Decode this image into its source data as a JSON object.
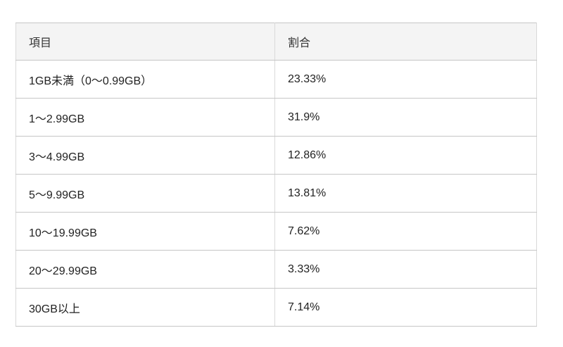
{
  "table": {
    "columns": [
      "項目",
      "割合"
    ],
    "rows": [
      {
        "item": "1GB未満（0〜0.99GB）",
        "ratio": "23.33%"
      },
      {
        "item": "1〜2.99GB",
        "ratio": "31.9%"
      },
      {
        "item": "3〜4.99GB",
        "ratio": "12.86%"
      },
      {
        "item": "5〜9.99GB",
        "ratio": "13.81%"
      },
      {
        "item": "10〜19.99GB",
        "ratio": "7.62%"
      },
      {
        "item": "20〜29.99GB",
        "ratio": "3.33%"
      },
      {
        "item": "30GB以上",
        "ratio": "7.14%"
      }
    ],
    "colors": {
      "header_bg": "#f4f4f4",
      "border_horizontal": "#c6c6c6",
      "border_vertical": "#d9d9d9",
      "text": "#222222",
      "page_bg": "#ffffff"
    }
  },
  "chart_data": {
    "type": "table",
    "title": "",
    "columns": [
      "項目",
      "割合"
    ],
    "categories": [
      "1GB未満（0〜0.99GB）",
      "1〜2.99GB",
      "3〜4.99GB",
      "5〜9.99GB",
      "10〜19.99GB",
      "20〜29.99GB",
      "30GB以上"
    ],
    "values": [
      23.33,
      31.9,
      12.86,
      13.81,
      7.62,
      3.33,
      7.14
    ],
    "unit": "%"
  }
}
